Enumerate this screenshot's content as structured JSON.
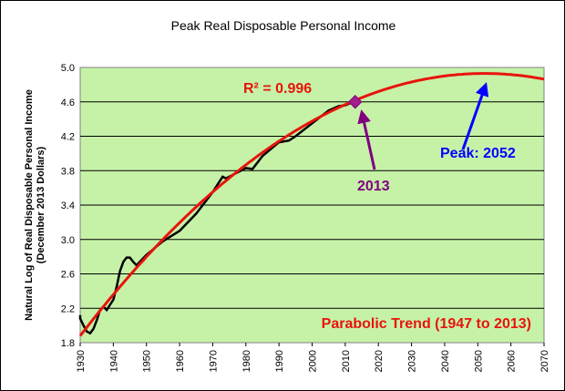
{
  "chart_data": {
    "type": "line",
    "title": "Peak Real Disposable Personal Income",
    "ylabel_line1": "Natural Log of Real Disposable Personal Income",
    "ylabel_line2": "(December 2013 Dollars)",
    "xlabel": "",
    "xlim": [
      1930,
      2070
    ],
    "ylim": [
      1.8,
      5.0
    ],
    "xticks": [
      1930,
      1940,
      1950,
      1960,
      1970,
      1980,
      1990,
      2000,
      2010,
      2020,
      2030,
      2040,
      2050,
      2060,
      2070
    ],
    "yticks": [
      "1.8",
      "2.2",
      "2.6",
      "3.0",
      "3.4",
      "3.8",
      "4.2",
      "4.6",
      "5.0"
    ],
    "grid": "horizontal",
    "series": [
      {
        "name": "",
        "color": "#000000",
        "x": [
          1929,
          1930,
          1931,
          1932,
          1933,
          1934,
          1935,
          1936,
          1937,
          1938,
          1939,
          1940,
          1941,
          1942,
          1943,
          1944,
          1945,
          1946,
          1947,
          1948,
          1950,
          1955,
          1960,
          1965,
          1970,
          1973,
          1974,
          1975,
          1980,
          1982,
          1985,
          1990,
          1993,
          1995,
          2000,
          2005,
          2008,
          2010,
          2013
        ],
        "y": [
          2.12,
          2.08,
          2.0,
          1.93,
          1.91,
          1.96,
          2.06,
          2.18,
          2.22,
          2.18,
          2.24,
          2.3,
          2.45,
          2.63,
          2.74,
          2.79,
          2.79,
          2.74,
          2.7,
          2.74,
          2.82,
          2.98,
          3.1,
          3.3,
          3.55,
          3.73,
          3.71,
          3.73,
          3.83,
          3.82,
          3.97,
          4.13,
          4.15,
          4.2,
          4.35,
          4.5,
          4.55,
          4.56,
          4.61
        ]
      },
      {
        "name": "",
        "color": "#e8140c",
        "curve": "parabolic",
        "x_start": 1930,
        "x_end": 2070,
        "vertex_x": 2052,
        "vertex_y": 4.93,
        "y_at_start": 1.88
      }
    ],
    "points": [
      {
        "x": 2013,
        "y": 4.6,
        "color": "#a0208c",
        "marker": "diamond"
      }
    ],
    "annotations": {
      "r2_label": "R² = 0.996",
      "trend_label": "Parabolic Trend (1947 to 2013)",
      "year_label": "2013",
      "peak_label": "Peak: 2052"
    },
    "colors": {
      "plot_background": "#c6f2a8",
      "trend": "#e8140c",
      "data": "#000000",
      "arrow_2013": "#800080",
      "arrow_peak": "#0000ff"
    }
  }
}
